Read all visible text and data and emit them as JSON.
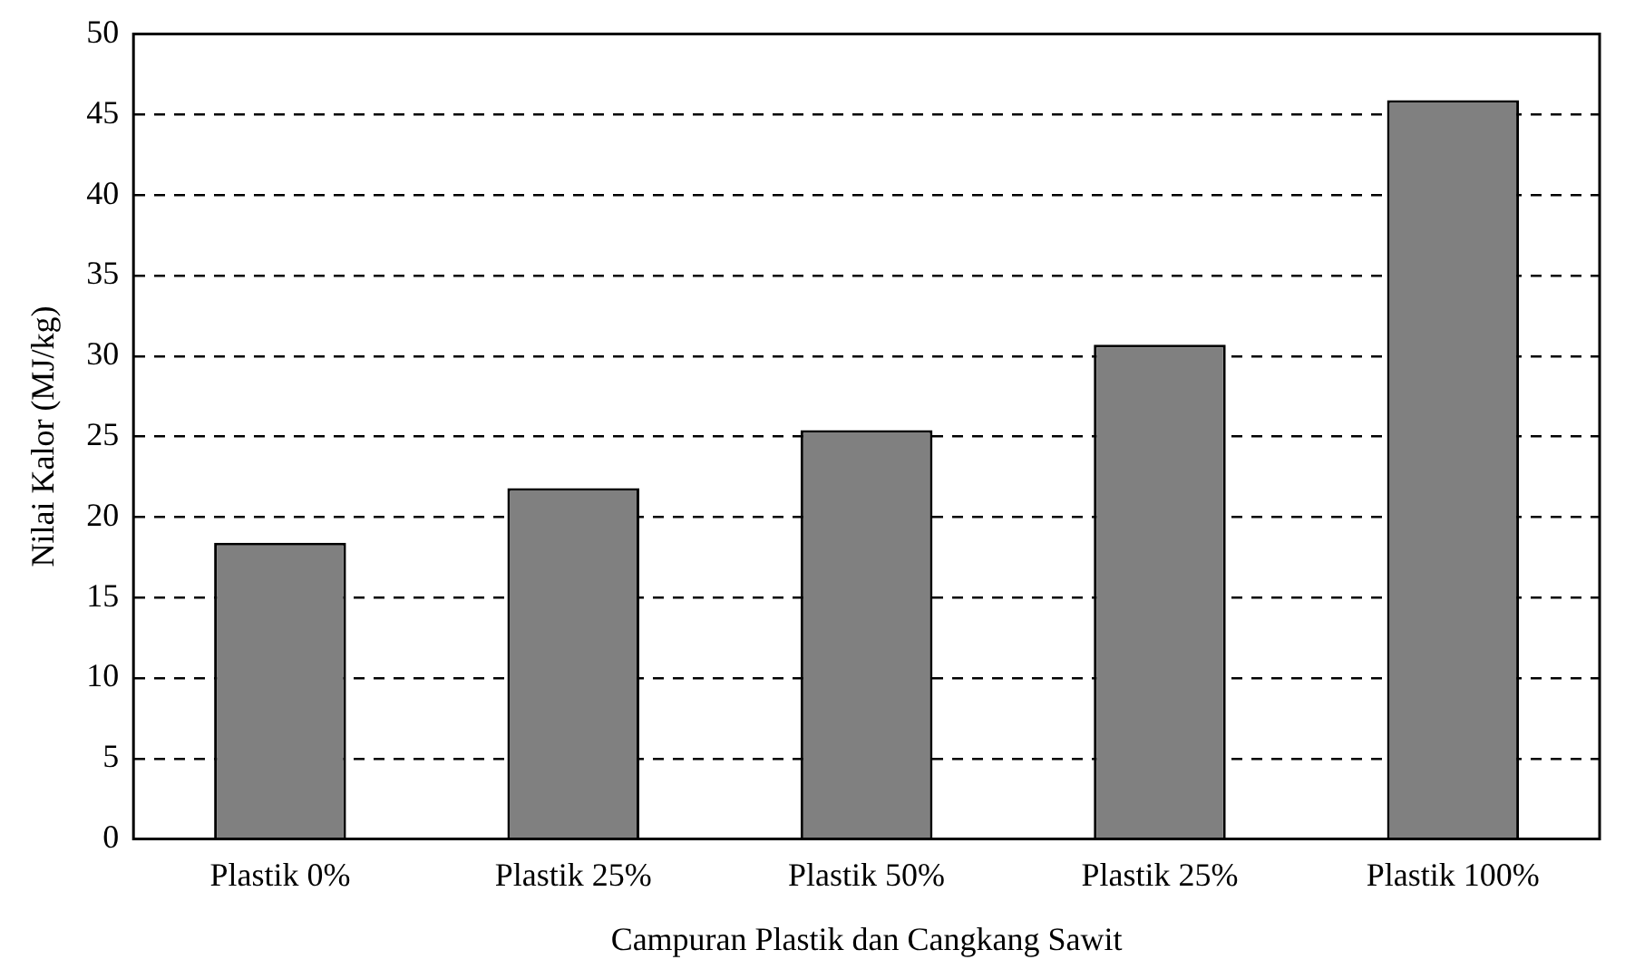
{
  "chart_data": {
    "type": "bar",
    "xlabel": "Campuran Plastik dan Cangkang Sawit",
    "ylabel": "Nilai Kalor (MJ/kg)",
    "categories": [
      "Plastik 0%",
      "Plastik 25%",
      "Plastik 50%",
      "Plastik 25%",
      "Plastik 100%"
    ],
    "values": [
      18.4,
      21.8,
      25.4,
      30.7,
      45.9
    ],
    "color": "#808080",
    "ylim": [
      0,
      50
    ],
    "yticks": [
      0,
      5,
      10,
      15,
      20,
      25,
      30,
      35,
      40,
      45,
      50
    ],
    "grid": "y",
    "legend": false
  }
}
